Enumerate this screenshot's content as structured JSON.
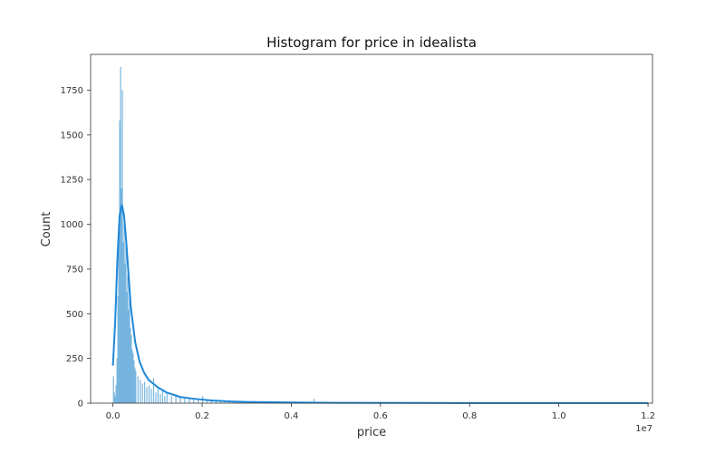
{
  "chart_data": {
    "type": "histogram",
    "title": "Histogram for price in idealista",
    "xlabel": "price",
    "ylabel": "Count",
    "x_offset_label": "1e7",
    "xlim": [
      -0.05,
      1.21
    ],
    "ylim": [
      0,
      1950
    ],
    "xticks": [
      0.0,
      0.2,
      0.4,
      0.6,
      0.8,
      1.0,
      1.2
    ],
    "xtick_labels": [
      "0.0",
      "0.2",
      "0.4",
      "0.6",
      "0.8",
      "1.0",
      "1.2"
    ],
    "yticks": [
      0,
      250,
      500,
      750,
      1000,
      1250,
      1500,
      1750
    ],
    "ytick_labels": [
      "0",
      "250",
      "500",
      "750",
      "1000",
      "1250",
      "1500",
      "1750"
    ],
    "grid": false,
    "bar_color": "#6aaedb",
    "kde_color": "#1f88d8",
    "bins": [
      {
        "x": 0.0,
        "count": 150
      },
      {
        "x": 0.002,
        "count": 60
      },
      {
        "x": 0.004,
        "count": 40
      },
      {
        "x": 0.006,
        "count": 100
      },
      {
        "x": 0.008,
        "count": 250
      },
      {
        "x": 0.01,
        "count": 600
      },
      {
        "x": 0.012,
        "count": 1000
      },
      {
        "x": 0.014,
        "count": 1580
      },
      {
        "x": 0.016,
        "count": 1880
      },
      {
        "x": 0.018,
        "count": 1200
      },
      {
        "x": 0.02,
        "count": 1750
      },
      {
        "x": 0.022,
        "count": 900
      },
      {
        "x": 0.024,
        "count": 1050
      },
      {
        "x": 0.026,
        "count": 780
      },
      {
        "x": 0.028,
        "count": 950
      },
      {
        "x": 0.03,
        "count": 620
      },
      {
        "x": 0.032,
        "count": 720
      },
      {
        "x": 0.034,
        "count": 520
      },
      {
        "x": 0.036,
        "count": 600
      },
      {
        "x": 0.038,
        "count": 420
      },
      {
        "x": 0.04,
        "count": 380
      },
      {
        "x": 0.042,
        "count": 300
      },
      {
        "x": 0.044,
        "count": 280
      },
      {
        "x": 0.046,
        "count": 240
      },
      {
        "x": 0.048,
        "count": 200
      },
      {
        "x": 0.05,
        "count": 180
      },
      {
        "x": 0.055,
        "count": 150
      },
      {
        "x": 0.06,
        "count": 130
      },
      {
        "x": 0.065,
        "count": 110
      },
      {
        "x": 0.07,
        "count": 120
      },
      {
        "x": 0.075,
        "count": 90
      },
      {
        "x": 0.08,
        "count": 100
      },
      {
        "x": 0.085,
        "count": 80
      },
      {
        "x": 0.09,
        "count": 140
      },
      {
        "x": 0.095,
        "count": 60
      },
      {
        "x": 0.1,
        "count": 90
      },
      {
        "x": 0.105,
        "count": 50
      },
      {
        "x": 0.11,
        "count": 70
      },
      {
        "x": 0.115,
        "count": 40
      },
      {
        "x": 0.12,
        "count": 60
      },
      {
        "x": 0.13,
        "count": 40
      },
      {
        "x": 0.14,
        "count": 50
      },
      {
        "x": 0.15,
        "count": 30
      },
      {
        "x": 0.16,
        "count": 35
      },
      {
        "x": 0.17,
        "count": 25
      },
      {
        "x": 0.18,
        "count": 30
      },
      {
        "x": 0.19,
        "count": 20
      },
      {
        "x": 0.2,
        "count": 40
      },
      {
        "x": 0.21,
        "count": 15
      },
      {
        "x": 0.22,
        "count": 20
      },
      {
        "x": 0.23,
        "count": 12
      },
      {
        "x": 0.24,
        "count": 15
      },
      {
        "x": 0.25,
        "count": 10
      },
      {
        "x": 0.26,
        "count": 12
      },
      {
        "x": 0.27,
        "count": 8
      },
      {
        "x": 0.28,
        "count": 8
      },
      {
        "x": 0.3,
        "count": 6
      },
      {
        "x": 0.32,
        "count": 5
      },
      {
        "x": 0.34,
        "count": 10
      },
      {
        "x": 0.36,
        "count": 4
      },
      {
        "x": 0.38,
        "count": 4
      },
      {
        "x": 0.4,
        "count": 6
      },
      {
        "x": 0.42,
        "count": 3
      },
      {
        "x": 0.45,
        "count": 25
      },
      {
        "x": 0.48,
        "count": 3
      },
      {
        "x": 0.5,
        "count": 2
      },
      {
        "x": 0.55,
        "count": 2
      },
      {
        "x": 0.6,
        "count": 3
      },
      {
        "x": 0.65,
        "count": 1
      },
      {
        "x": 0.7,
        "count": 1
      },
      {
        "x": 0.8,
        "count": 1
      },
      {
        "x": 0.9,
        "count": 1
      },
      {
        "x": 1.0,
        "count": 1
      },
      {
        "x": 1.2,
        "count": 1
      }
    ],
    "kde": [
      {
        "x": 0.0,
        "y": 210
      },
      {
        "x": 0.005,
        "y": 450
      },
      {
        "x": 0.01,
        "y": 800
      },
      {
        "x": 0.015,
        "y": 1050
      },
      {
        "x": 0.02,
        "y": 1110
      },
      {
        "x": 0.025,
        "y": 1050
      },
      {
        "x": 0.03,
        "y": 900
      },
      {
        "x": 0.035,
        "y": 720
      },
      {
        "x": 0.04,
        "y": 540
      },
      {
        "x": 0.05,
        "y": 340
      },
      {
        "x": 0.06,
        "y": 230
      },
      {
        "x": 0.07,
        "y": 170
      },
      {
        "x": 0.08,
        "y": 130
      },
      {
        "x": 0.1,
        "y": 90
      },
      {
        "x": 0.12,
        "y": 60
      },
      {
        "x": 0.15,
        "y": 35
      },
      {
        "x": 0.18,
        "y": 25
      },
      {
        "x": 0.22,
        "y": 15
      },
      {
        "x": 0.26,
        "y": 10
      },
      {
        "x": 0.3,
        "y": 7
      },
      {
        "x": 0.4,
        "y": 4
      },
      {
        "x": 0.5,
        "y": 2
      },
      {
        "x": 0.7,
        "y": 1
      },
      {
        "x": 1.0,
        "y": 0.5
      },
      {
        "x": 1.2,
        "y": 0.5
      }
    ]
  }
}
